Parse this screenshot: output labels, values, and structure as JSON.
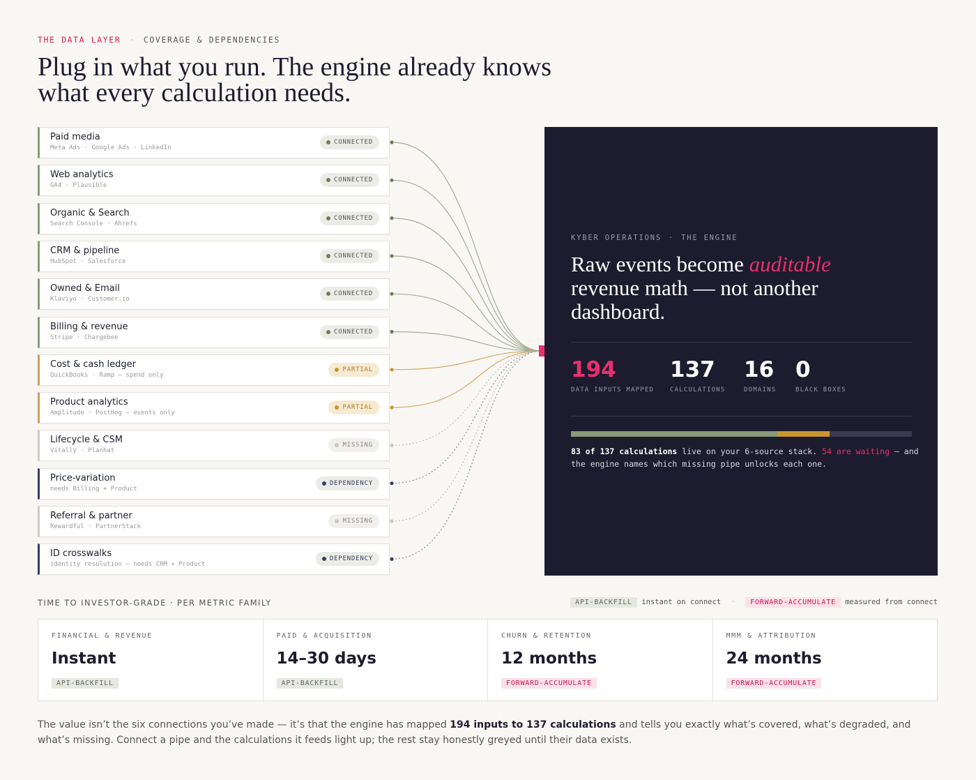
{
  "header": {
    "eyebrow": "THE DATA LAYER",
    "eyebrow_sub": "COVERAGE & DEPENDENCIES",
    "title": "Plug in what you run. The engine already knows what every calculation needs."
  },
  "sources": [
    {
      "name": "Paid media",
      "detail": "Meta Ads · Google Ads · LinkedIn",
      "status": "CONNECTED"
    },
    {
      "name": "Web analytics",
      "detail": "GA4 · Plausible",
      "status": "CONNECTED"
    },
    {
      "name": "Organic & Search",
      "detail": "Search Console · Ahrefs",
      "status": "CONNECTED"
    },
    {
      "name": "CRM & pipeline",
      "detail": "HubSpot · Salesforce",
      "status": "CONNECTED"
    },
    {
      "name": "Owned & Email",
      "detail": "Klaviyo · Customer.io",
      "status": "CONNECTED"
    },
    {
      "name": "Billing & revenue",
      "detail": "Stripe · Chargebee",
      "status": "CONNECTED"
    },
    {
      "name": "Cost & cash ledger",
      "detail": "QuickBooks · Ramp — spend only",
      "status": "PARTIAL"
    },
    {
      "name": "Product analytics",
      "detail": "Amplitude · PostHog — events only",
      "status": "PARTIAL"
    },
    {
      "name": "Lifecycle & CSM",
      "detail": "Vitally · Planhat",
      "status": "MISSING"
    },
    {
      "name": "Price-variation",
      "detail": "needs Billing + Product",
      "status": "DEPENDENCY"
    },
    {
      "name": "Referral & partner",
      "detail": "Rewardful · PartnerStack",
      "status": "MISSING"
    },
    {
      "name": "ID crosswalks",
      "detail": "identity resolution — needs CRM + Product",
      "status": "DEPENDENCY"
    }
  ],
  "engine": {
    "eyebrow": "KYBER OPERATIONS",
    "eyebrow_sub": "THE ENGINE",
    "headline_a": "Raw events become ",
    "headline_em": "auditable",
    "headline_b": " revenue math — not another dashboard.",
    "stats": [
      {
        "value": "194",
        "label": "DATA INPUTS MAPPED"
      },
      {
        "value": "137",
        "label": "CALCULATIONS"
      },
      {
        "value": "16",
        "label": "DOMAINS"
      },
      {
        "value": "0",
        "label": "BLACK BOXES"
      }
    ],
    "bar_partial": 21,
    "note": {
      "covered": 83,
      "of": " of ",
      "total": 137,
      "unit": " calculations",
      "text1": " live on your 6-source stack. ",
      "waiting": "54 are waiting",
      "text2": " — and the engine names which missing pipe unlocks each one."
    }
  },
  "timing": {
    "label": "TIME TO INVESTOR-GRADE · PER METRIC FAMILY",
    "legend": [
      {
        "tag": "API-BACKFILL",
        "text": "instant on connect"
      },
      {
        "tag": "FORWARD-ACCUMULATE",
        "text": "measured from connect"
      }
    ],
    "cards": [
      {
        "family": "FINANCIAL & REVENUE",
        "time": "Instant",
        "method": "API-BACKFILL"
      },
      {
        "family": "PAID & ACQUISITION",
        "time": "14–30 days",
        "method": "API-BACKFILL"
      },
      {
        "family": "CHURN & RETENTION",
        "time": "12 months",
        "method": "FORWARD-ACCUMULATE"
      },
      {
        "family": "MMM & ATTRIBUTION",
        "time": "24 months",
        "method": "FORWARD-ACCUMULATE"
      }
    ]
  },
  "footer": {
    "text1": "The value isn’t the six connections you’ve made — it’s that the engine has mapped ",
    "strong": "194 inputs to 137 calculations",
    "text2": " and tells you exactly what’s covered, what’s degraded, and what’s missing. Connect a pipe and the calculations it feeds light up; the rest stay honestly greyed until their data exists."
  }
}
